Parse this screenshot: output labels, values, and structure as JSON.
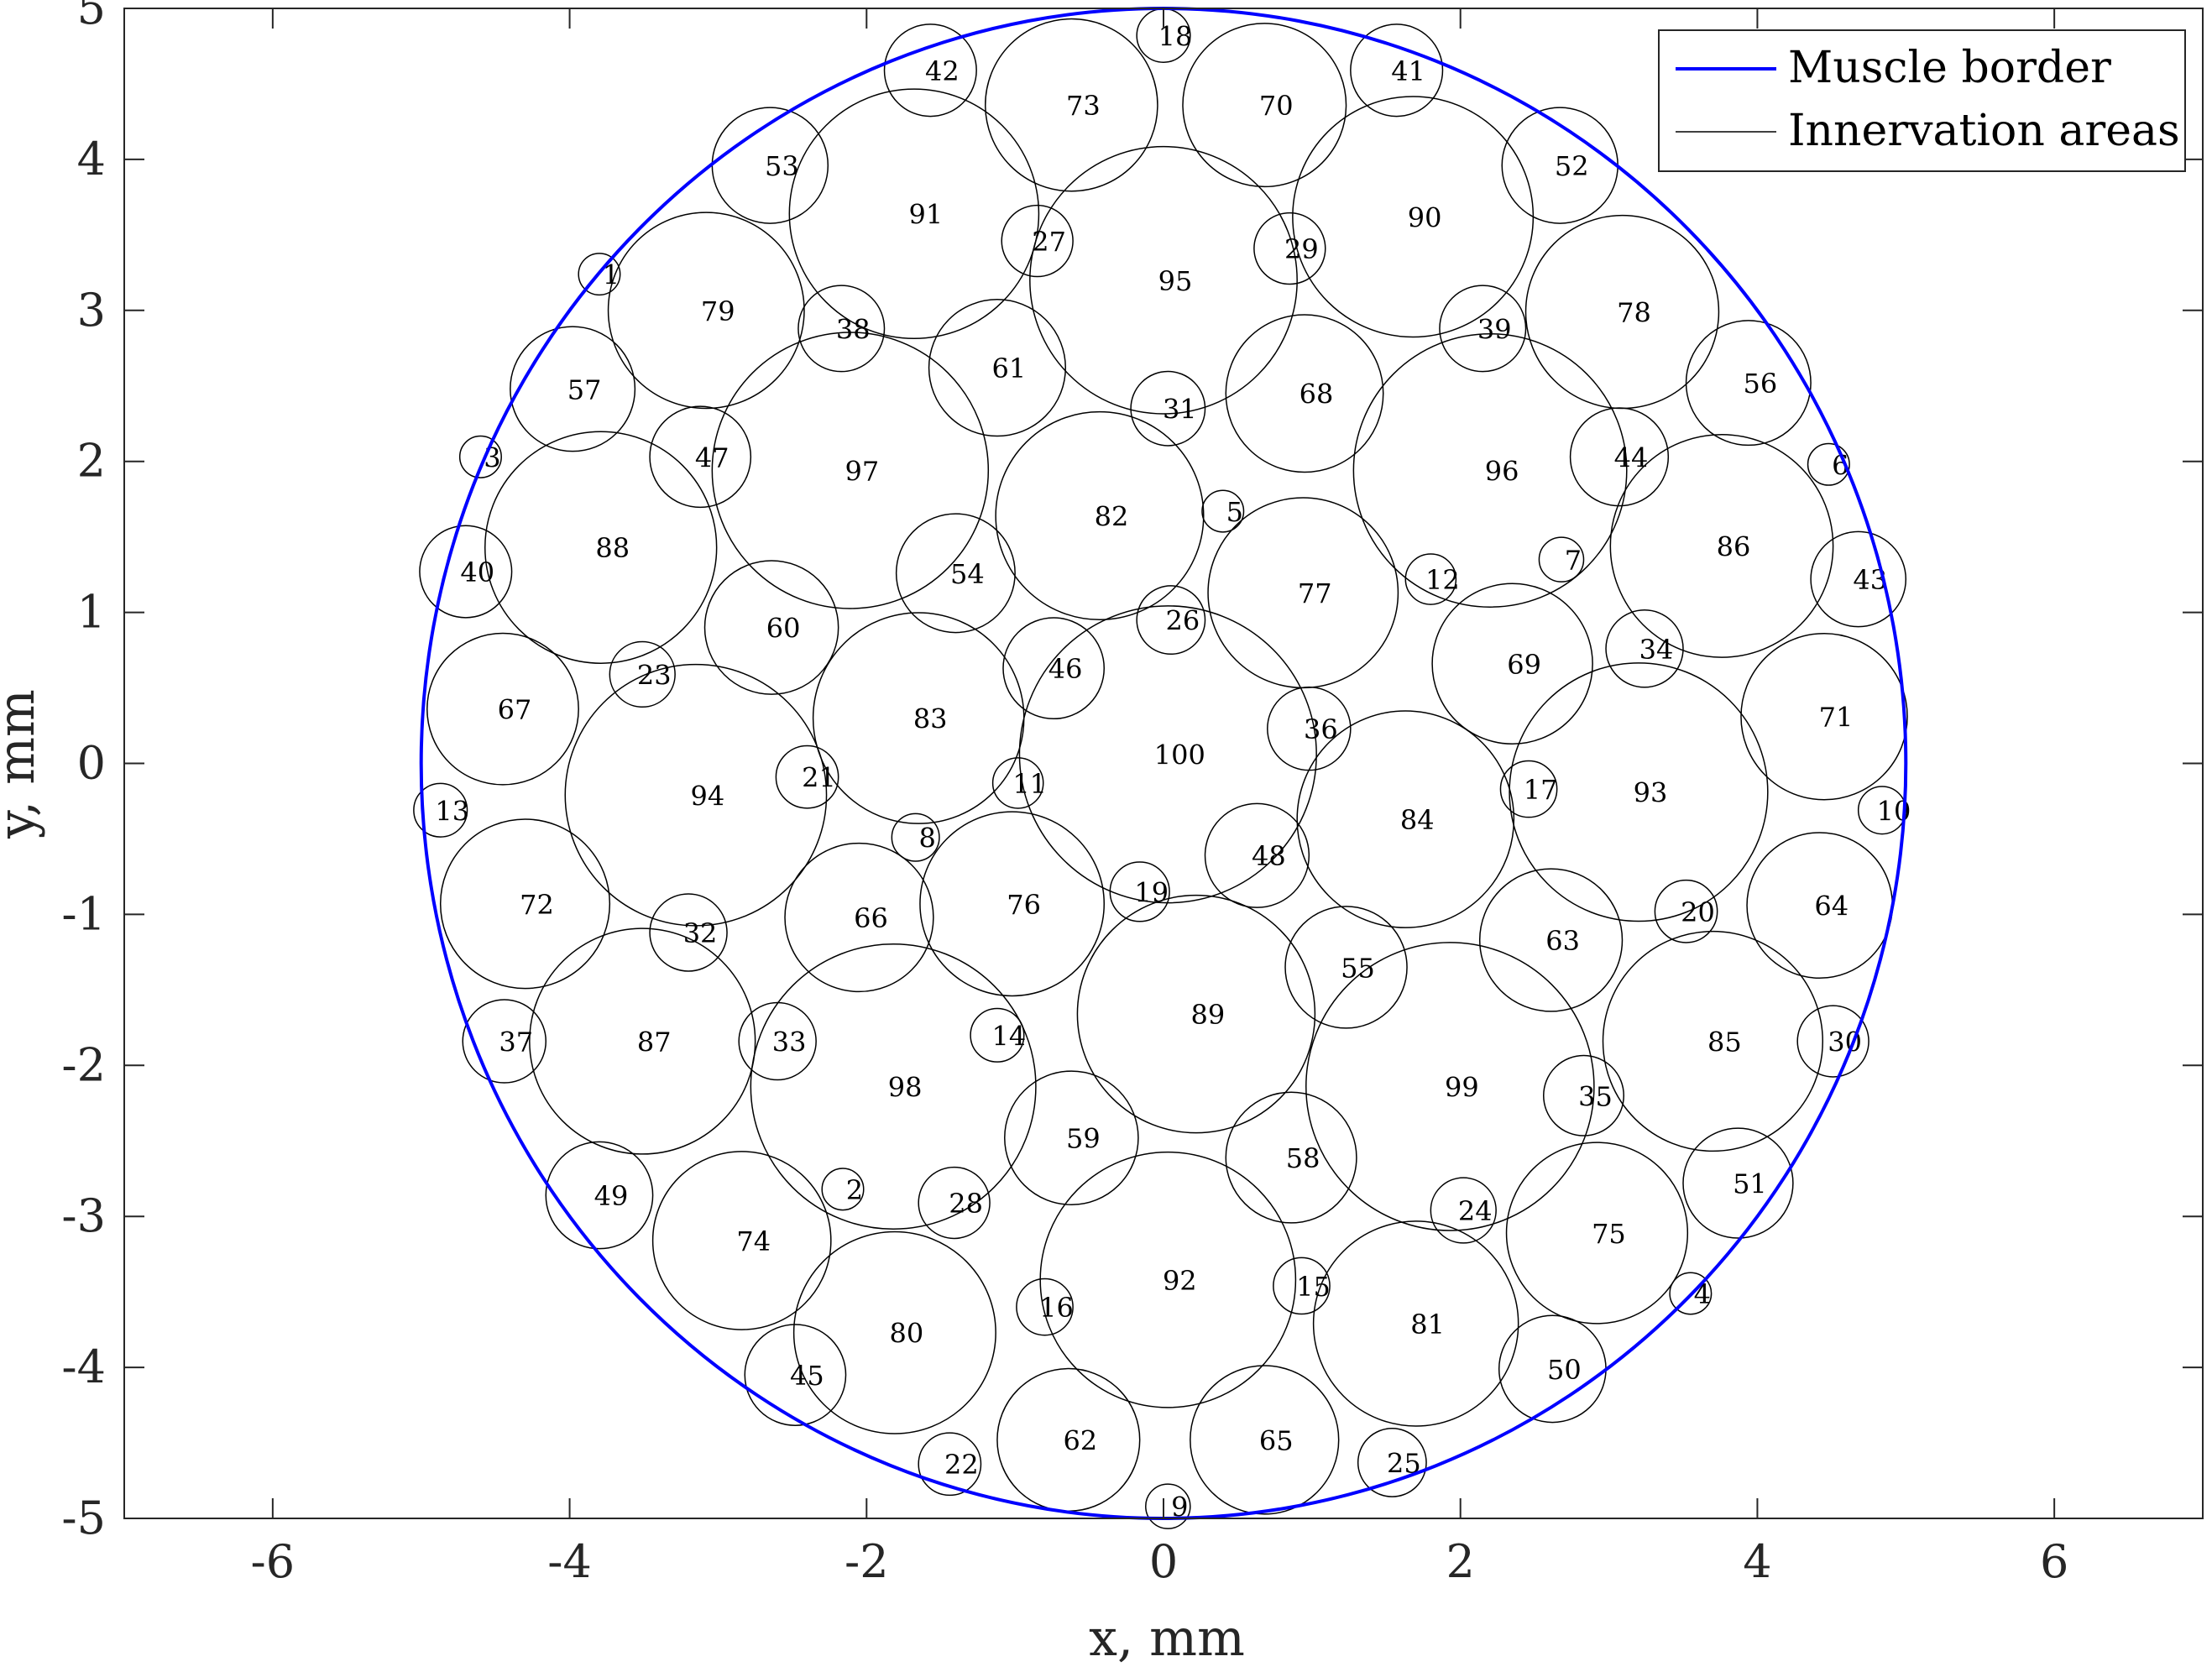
{
  "chart_data": {
    "type": "scatter",
    "title": "",
    "xlabel": "x, mm",
    "ylabel": "y, mm",
    "xlim": [
      -7,
      7
    ],
    "ylim": [
      -5,
      5
    ],
    "xticks": [
      -6,
      -4,
      -2,
      0,
      2,
      4,
      6
    ],
    "yticks": [
      -5,
      -4,
      -3,
      -2,
      -1,
      0,
      1,
      2,
      3,
      4,
      5
    ],
    "grid": false,
    "legend_placement": "top-right",
    "muscle_border": {
      "name": "Muscle border",
      "center": [
        0,
        0
      ],
      "radius": 5,
      "color": "#0000ff"
    },
    "innervation_series_name": "Innervation areas",
    "innervation_color": "#000000",
    "innervation_areas": [
      {
        "id": "1",
        "x": -3.8,
        "y": 3.24,
        "r": 0.14
      },
      {
        "id": "2",
        "x": -2.16,
        "y": -2.82,
        "r": 0.14
      },
      {
        "id": "3",
        "x": -4.6,
        "y": 2.03,
        "r": 0.14
      },
      {
        "id": "4",
        "x": 3.55,
        "y": -3.51,
        "r": 0.14
      },
      {
        "id": "5",
        "x": 0.4,
        "y": 1.67,
        "r": 0.14
      },
      {
        "id": "6",
        "x": 4.48,
        "y": 1.98,
        "r": 0.14
      },
      {
        "id": "7",
        "x": 2.68,
        "y": 1.35,
        "r": 0.15
      },
      {
        "id": "8",
        "x": -1.67,
        "y": -0.49,
        "r": 0.16
      },
      {
        "id": "9",
        "x": 0.03,
        "y": -4.92,
        "r": 0.15
      },
      {
        "id": "10",
        "x": 4.84,
        "y": -0.31,
        "r": 0.16
      },
      {
        "id": "11",
        "x": -0.98,
        "y": -0.13,
        "r": 0.17
      },
      {
        "id": "12",
        "x": 1.8,
        "y": 1.22,
        "r": 0.17
      },
      {
        "id": "13",
        "x": -4.87,
        "y": -0.31,
        "r": 0.18
      },
      {
        "id": "14",
        "x": -1.12,
        "y": -1.8,
        "r": 0.18
      },
      {
        "id": "15",
        "x": 0.93,
        "y": -3.46,
        "r": 0.19
      },
      {
        "id": "16",
        "x": -0.8,
        "y": -3.6,
        "r": 0.19
      },
      {
        "id": "17",
        "x": 2.46,
        "y": -0.17,
        "r": 0.19
      },
      {
        "id": "18",
        "x": 0,
        "y": 4.82,
        "r": 0.18
      },
      {
        "id": "19",
        "x": -0.16,
        "y": -0.85,
        "r": 0.2
      },
      {
        "id": "20",
        "x": 3.52,
        "y": -0.98,
        "r": 0.21
      },
      {
        "id": "21",
        "x": -2.4,
        "y": -0.09,
        "r": 0.21
      },
      {
        "id": "22",
        "x": -1.44,
        "y": -4.64,
        "r": 0.21
      },
      {
        "id": "23",
        "x": -3.51,
        "y": 0.59,
        "r": 0.22
      },
      {
        "id": "24",
        "x": 2.02,
        "y": -2.96,
        "r": 0.22
      },
      {
        "id": "25",
        "x": 1.54,
        "y": -4.63,
        "r": 0.23
      },
      {
        "id": "26",
        "x": 0.05,
        "y": 0.95,
        "r": 0.23
      },
      {
        "id": "27",
        "x": -0.85,
        "y": 3.46,
        "r": 0.24
      },
      {
        "id": "28",
        "x": -1.41,
        "y": -2.91,
        "r": 0.24
      },
      {
        "id": "29",
        "x": 0.85,
        "y": 3.41,
        "r": 0.24
      },
      {
        "id": "30",
        "x": 4.51,
        "y": -1.84,
        "r": 0.24
      },
      {
        "id": "31",
        "x": 0.03,
        "y": 2.35,
        "r": 0.25
      },
      {
        "id": "32",
        "x": -3.2,
        "y": -1.12,
        "r": 0.26
      },
      {
        "id": "33",
        "x": -2.6,
        "y": -1.84,
        "r": 0.26
      },
      {
        "id": "34",
        "x": 3.24,
        "y": 0.76,
        "r": 0.26
      },
      {
        "id": "35",
        "x": 2.83,
        "y": -2.2,
        "r": 0.27
      },
      {
        "id": "36",
        "x": 0.98,
        "y": 0.23,
        "r": 0.28
      },
      {
        "id": "37",
        "x": -4.44,
        "y": -1.84,
        "r": 0.28
      },
      {
        "id": "38",
        "x": -2.17,
        "y": 2.88,
        "r": 0.29
      },
      {
        "id": "39",
        "x": 2.15,
        "y": 2.88,
        "r": 0.29
      },
      {
        "id": "40",
        "x": -4.7,
        "y": 1.27,
        "r": 0.31
      },
      {
        "id": "41",
        "x": 1.57,
        "y": 4.59,
        "r": 0.31
      },
      {
        "id": "42",
        "x": -1.57,
        "y": 4.59,
        "r": 0.31
      },
      {
        "id": "43",
        "x": 4.68,
        "y": 1.22,
        "r": 0.32
      },
      {
        "id": "44",
        "x": 3.07,
        "y": 2.03,
        "r": 0.33
      },
      {
        "id": "45",
        "x": -2.48,
        "y": -4.05,
        "r": 0.34
      },
      {
        "id": "46",
        "x": -0.74,
        "y": 0.63,
        "r": 0.34
      },
      {
        "id": "47",
        "x": -3.12,
        "y": 2.03,
        "r": 0.34
      },
      {
        "id": "48",
        "x": 0.63,
        "y": -0.61,
        "r": 0.35
      },
      {
        "id": "49",
        "x": -3.8,
        "y": -2.86,
        "r": 0.36
      },
      {
        "id": "50",
        "x": 2.62,
        "y": -4.01,
        "r": 0.36
      },
      {
        "id": "51",
        "x": 3.87,
        "y": -2.78,
        "r": 0.37
      },
      {
        "id": "52",
        "x": 2.67,
        "y": 3.96,
        "r": 0.39
      },
      {
        "id": "53",
        "x": -2.65,
        "y": 3.96,
        "r": 0.39
      },
      {
        "id": "54",
        "x": -1.4,
        "y": 1.26,
        "r": 0.4
      },
      {
        "id": "55",
        "x": 1.23,
        "y": -1.35,
        "r": 0.41
      },
      {
        "id": "56",
        "x": 3.94,
        "y": 2.52,
        "r": 0.42
      },
      {
        "id": "57",
        "x": -3.98,
        "y": 2.48,
        "r": 0.42
      },
      {
        "id": "58",
        "x": 0.86,
        "y": -2.61,
        "r": 0.44
      },
      {
        "id": "59",
        "x": -0.62,
        "y": -2.48,
        "r": 0.45
      },
      {
        "id": "60",
        "x": -2.64,
        "y": 0.9,
        "r": 0.45
      },
      {
        "id": "61",
        "x": -1.12,
        "y": 2.62,
        "r": 0.46
      },
      {
        "id": "62",
        "x": -0.64,
        "y": -4.48,
        "r": 0.48
      },
      {
        "id": "63",
        "x": 2.61,
        "y": -1.17,
        "r": 0.48
      },
      {
        "id": "64",
        "x": 4.42,
        "y": -0.94,
        "r": 0.49
      },
      {
        "id": "65",
        "x": 0.68,
        "y": -4.48,
        "r": 0.5
      },
      {
        "id": "66",
        "x": -2.05,
        "y": -1.02,
        "r": 0.5
      },
      {
        "id": "67",
        "x": -4.45,
        "y": 0.36,
        "r": 0.51
      },
      {
        "id": "68",
        "x": 0.95,
        "y": 2.45,
        "r": 0.53
      },
      {
        "id": "69",
        "x": 2.35,
        "y": 0.66,
        "r": 0.54
      },
      {
        "id": "70",
        "x": 0.68,
        "y": 4.36,
        "r": 0.55
      },
      {
        "id": "71",
        "x": 4.45,
        "y": 0.31,
        "r": 0.56
      },
      {
        "id": "72",
        "x": -4.3,
        "y": -0.93,
        "r": 0.57
      },
      {
        "id": "73",
        "x": -0.62,
        "y": 4.36,
        "r": 0.58
      },
      {
        "id": "74",
        "x": -2.84,
        "y": -3.16,
        "r": 0.6
      },
      {
        "id": "75",
        "x": 2.92,
        "y": -3.11,
        "r": 0.61
      },
      {
        "id": "76",
        "x": -1.02,
        "y": -0.93,
        "r": 0.62
      },
      {
        "id": "77",
        "x": 0.94,
        "y": 1.13,
        "r": 0.64
      },
      {
        "id": "78",
        "x": 3.09,
        "y": 2.99,
        "r": 0.65
      },
      {
        "id": "79",
        "x": -3.08,
        "y": 3.0,
        "r": 0.66
      },
      {
        "id": "80",
        "x": -1.81,
        "y": -3.77,
        "r": 0.68
      },
      {
        "id": "81",
        "x": 1.7,
        "y": -3.71,
        "r": 0.69
      },
      {
        "id": "82",
        "x": -0.43,
        "y": 1.64,
        "r": 0.7
      },
      {
        "id": "83",
        "x": -1.65,
        "y": 0.3,
        "r": 0.71
      },
      {
        "id": "84",
        "x": 1.63,
        "y": -0.37,
        "r": 0.73
      },
      {
        "id": "85",
        "x": 3.7,
        "y": -1.84,
        "r": 0.74
      },
      {
        "id": "86",
        "x": 3.76,
        "y": 1.44,
        "r": 0.75
      },
      {
        "id": "87",
        "x": -3.51,
        "y": -1.84,
        "r": 0.76
      },
      {
        "id": "88",
        "x": -3.79,
        "y": 1.43,
        "r": 0.78
      },
      {
        "id": "89",
        "x": 0.22,
        "y": -1.66,
        "r": 0.8
      },
      {
        "id": "90",
        "x": 1.68,
        "y": 3.62,
        "r": 0.81
      },
      {
        "id": "91",
        "x": -1.68,
        "y": 3.64,
        "r": 0.84
      },
      {
        "id": "92",
        "x": 0.03,
        "y": -3.42,
        "r": 0.86
      },
      {
        "id": "93",
        "x": 3.2,
        "y": -0.19,
        "r": 0.87
      },
      {
        "id": "94",
        "x": -3.15,
        "y": -0.21,
        "r": 0.88
      },
      {
        "id": "95",
        "x": 0.0,
        "y": 3.2,
        "r": 0.9
      },
      {
        "id": "96",
        "x": 2.2,
        "y": 1.94,
        "r": 0.92
      },
      {
        "id": "97",
        "x": -2.11,
        "y": 1.94,
        "r": 0.93
      },
      {
        "id": "98",
        "x": -1.82,
        "y": -2.14,
        "r": 0.96
      },
      {
        "id": "99",
        "x": 1.93,
        "y": -2.14,
        "r": 0.97
      },
      {
        "id": "100",
        "x": 0.03,
        "y": 0.06,
        "r": 1.0
      }
    ]
  }
}
